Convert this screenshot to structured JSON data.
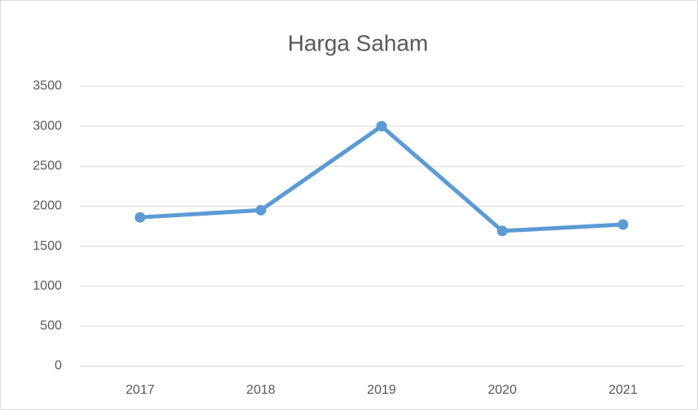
{
  "chart_data": {
    "type": "line",
    "title": "Harga Saham",
    "categories": [
      "2017",
      "2018",
      "2019",
      "2020",
      "2021"
    ],
    "series": [
      {
        "name": "Harga Saham",
        "color": "#5b9bd5",
        "values": [
          1860,
          1950,
          3000,
          1690,
          1770
        ]
      }
    ],
    "ylim": [
      0,
      3500
    ],
    "yticks": [
      0,
      500,
      1000,
      1500,
      2000,
      2500,
      3000,
      3500
    ],
    "grid": true
  }
}
